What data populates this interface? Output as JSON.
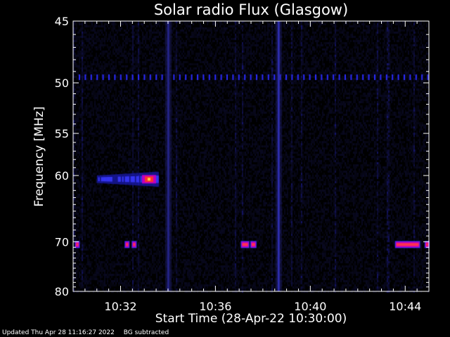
{
  "chart_data": {
    "type": "heatmap",
    "title": "Solar radio Flux (Glasgow)",
    "ylabel": "Frequency [MHz]",
    "xlabel": "Start Time (28-Apr-22 10:30:00)",
    "x_ticks": [
      "10:32",
      "10:36",
      "10:40",
      "10:44"
    ],
    "x_tick_minutes": [
      2,
      6,
      10,
      14
    ],
    "xlim_minutes": [
      0,
      15
    ],
    "y_ticks": [
      45,
      50,
      55,
      60,
      70,
      80
    ],
    "ylim": [
      45,
      80
    ],
    "y_scale": "reciprocal",
    "colormap": [
      "#000000",
      "#1a1a7a",
      "#2e2eff",
      "#c000c0",
      "#ff2040"
    ],
    "features": [
      {
        "type": "horizontal_band",
        "freq_mhz": 49.5,
        "style": "dotted",
        "color": "#2b2bff"
      },
      {
        "type": "horizontal_band",
        "freq_mhz": 70.5,
        "segments_minutes": [
          [
            0.1,
            0.25
          ],
          [
            2.2,
            2.35
          ],
          [
            2.5,
            2.65
          ],
          [
            7.1,
            7.4
          ],
          [
            7.5,
            7.7
          ],
          [
            13.6,
            14.6
          ],
          [
            14.85,
            15.0
          ]
        ],
        "color": "#ff3050"
      },
      {
        "type": "burst",
        "freq_range_mhz": [
          59.5,
          61.5
        ],
        "time_range_minutes": [
          1.0,
          3.6
        ],
        "peak_minute": 3.2,
        "color": "#ff3030"
      },
      {
        "type": "vertical_line",
        "minute": 8.65,
        "color": "#3030c0"
      },
      {
        "type": "vertical_line",
        "minute": 4.0,
        "color": "#202080"
      }
    ]
  },
  "footer": {
    "updated": "Updated Thu Apr 28 11:16:27 2022",
    "note": "BG subtracted"
  }
}
